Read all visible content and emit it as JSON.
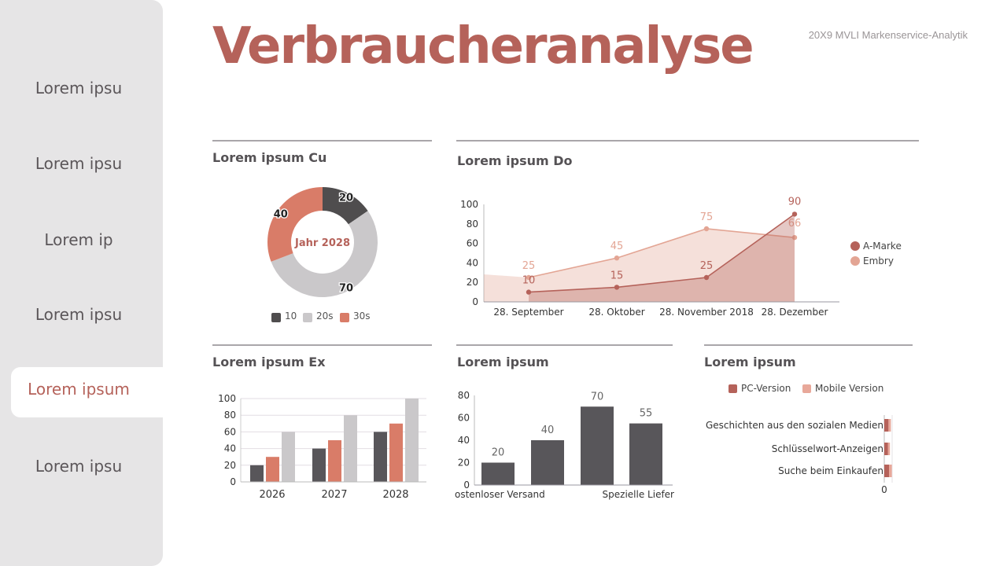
{
  "sidebar": {
    "items": [
      {
        "label": "Lorem ipsu",
        "active": false
      },
      {
        "label": "Lorem ipsu",
        "active": false
      },
      {
        "label": "Lorem ip",
        "active": false
      },
      {
        "label": "Lorem ipsu",
        "active": false
      },
      {
        "label": "Lorem ipsum",
        "active": true
      },
      {
        "label": "Lorem ipsu",
        "active": false
      }
    ]
  },
  "header": {
    "title": "Verbraucheranalyse",
    "subtitle": "20X9 MVLI Markenservice-Analytik"
  },
  "colors": {
    "accent": "#b5625a",
    "dark": "#58565a",
    "light": "#c9c7c9",
    "salmon": "#d97c68",
    "pink": "#e8a89a"
  },
  "chart_data": [
    {
      "id": "donut",
      "type": "pie",
      "title": "Lorem ipsum Cu",
      "center_label": "Jahr 2028",
      "categories": [
        "10",
        "20s",
        "30s"
      ],
      "values": [
        20,
        70,
        40
      ],
      "colors": [
        "#4f4d4e",
        "#cac8ca",
        "#d97c68"
      ]
    },
    {
      "id": "line",
      "type": "area",
      "title": "Lorem ipsum Do",
      "categories": [
        "28. September",
        "28. Oktober",
        "28. November 2018",
        "28. Dezember"
      ],
      "ylim": [
        0,
        100
      ],
      "yticks": [
        0,
        20,
        40,
        60,
        80,
        100
      ],
      "series": [
        {
          "name": "A-Marke",
          "values": [
            10,
            15,
            25,
            90
          ],
          "color": "#b5625a"
        },
        {
          "name": "Embry",
          "values": [
            25,
            45,
            75,
            66
          ],
          "color": "#e3a594"
        }
      ],
      "legend": "right"
    },
    {
      "id": "bars",
      "type": "bar",
      "title": "Lorem ipsum Ex",
      "categories": [
        "2026",
        "2027",
        "2028"
      ],
      "ylim": [
        0,
        100
      ],
      "yticks": [
        0,
        20,
        40,
        60,
        80,
        100
      ],
      "series": [
        {
          "values": [
            20,
            40,
            60
          ],
          "color": "#58565a"
        },
        {
          "values": [
            30,
            50,
            70
          ],
          "color": "#d97c68"
        },
        {
          "values": [
            60,
            80,
            100
          ],
          "color": "#cac8ca"
        }
      ]
    },
    {
      "id": "bars2",
      "type": "bar",
      "title": "Lorem ipsum",
      "categories": [
        "ostenloser Versand",
        "",
        "",
        "Spezielle Liefer"
      ],
      "ylim": [
        0,
        80
      ],
      "yticks": [
        0,
        20,
        40,
        60,
        80
      ],
      "values": [
        20,
        40,
        70,
        55
      ],
      "color": "#58565a"
    },
    {
      "id": "hbar",
      "type": "bar",
      "orientation": "horizontal",
      "title": "Lorem ipsum",
      "categories": [
        "Geschichten aus den sozialen Medien",
        "Schlüsselwort-Anzeigen",
        "Suche beim Einkaufen"
      ],
      "series": [
        {
          "name": "PC-Version",
          "values": [
            0.45,
            0.4,
            0.5
          ],
          "color": "#b5625a"
        },
        {
          "name": "Mobile Version",
          "values": [
            0.25,
            0.2,
            0.3
          ],
          "color": "#e8a89a"
        }
      ],
      "xticks": [
        "0"
      ]
    }
  ]
}
